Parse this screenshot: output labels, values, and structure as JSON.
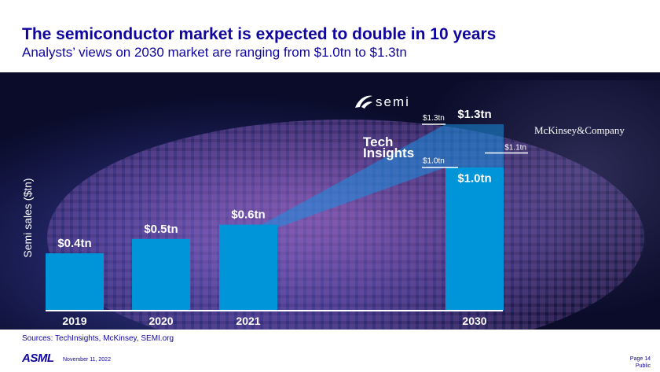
{
  "title": "The semiconductor market is expected to double in 10 years",
  "subtitle": "Analysts’ views on 2030 market are ranging from $1.0tn to $1.3tn",
  "chart_data": {
    "type": "bar",
    "ylabel": "Semi sales ($tn)",
    "ylim": [
      0,
      1.3
    ],
    "categories": [
      "2019",
      "2020",
      "2021",
      "2030"
    ],
    "values": [
      0.4,
      0.5,
      0.6,
      1.3
    ],
    "value_labels": [
      "$0.4tn",
      "$0.5tn",
      "$0.6tn",
      "$1.3tn"
    ],
    "range_band_low_label": "$1.0tn",
    "projections": [
      {
        "source": "SEMI",
        "value": 1.3,
        "label": "$1.3tn"
      },
      {
        "source": "McKinsey & Company",
        "value": 1.1,
        "label": "$1.1tn"
      },
      {
        "source": "TechInsights",
        "value": 1.0,
        "label": "$1.0tn"
      }
    ]
  },
  "logos": {
    "semi": "semi",
    "mckinsey": "McKinsey&Company",
    "tech_line1": "Tech",
    "tech_line2": "Insights"
  },
  "colors": {
    "bar": "#0094d9",
    "band": "#0f86d3",
    "title": "#10069f"
  },
  "footer": {
    "sources": "Sources: TechInsights, McKinsey, SEMI.org",
    "brand": "ASML",
    "date": "November 11, 2022",
    "page": "Page 14",
    "classification": "Public"
  }
}
